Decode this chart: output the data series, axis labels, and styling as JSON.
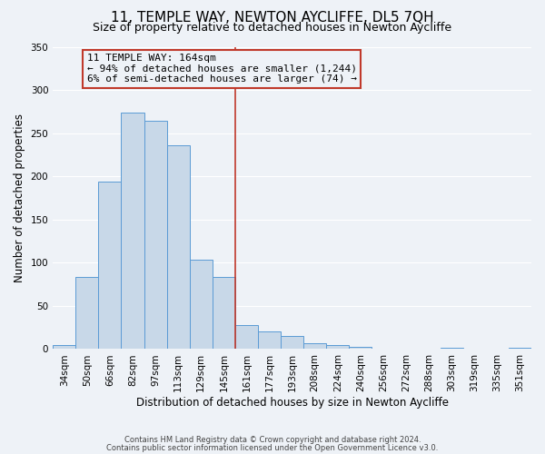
{
  "title": "11, TEMPLE WAY, NEWTON AYCLIFFE, DL5 7QH",
  "subtitle": "Size of property relative to detached houses in Newton Aycliffe",
  "xlabel": "Distribution of detached houses by size in Newton Aycliffe",
  "ylabel": "Number of detached properties",
  "bar_labels": [
    "34sqm",
    "50sqm",
    "66sqm",
    "82sqm",
    "97sqm",
    "113sqm",
    "129sqm",
    "145sqm",
    "161sqm",
    "177sqm",
    "193sqm",
    "208sqm",
    "224sqm",
    "240sqm",
    "256sqm",
    "272sqm",
    "288sqm",
    "303sqm",
    "319sqm",
    "335sqm",
    "351sqm"
  ],
  "bar_values": [
    5,
    84,
    194,
    274,
    264,
    236,
    104,
    83,
    28,
    20,
    15,
    7,
    5,
    3,
    1,
    0,
    0,
    2,
    0,
    1,
    2
  ],
  "bar_color": "#c8d8e8",
  "bar_edge_color": "#5b9bd5",
  "vline_index": 8,
  "vline_color": "#c0392b",
  "annotation_title": "11 TEMPLE WAY: 164sqm",
  "annotation_line1": "← 94% of detached houses are smaller (1,244)",
  "annotation_line2": "6% of semi-detached houses are larger (74) →",
  "annotation_box_edge": "#c0392b",
  "ylim": [
    0,
    350
  ],
  "footnote1": "Contains HM Land Registry data © Crown copyright and database right 2024.",
  "footnote2": "Contains public sector information licensed under the Open Government Licence v3.0.",
  "background_color": "#eef2f7",
  "grid_color": "#ffffff",
  "title_fontsize": 11,
  "subtitle_fontsize": 9,
  "axis_label_fontsize": 8.5,
  "tick_fontsize": 7.5,
  "annotation_fontsize": 8,
  "footnote_fontsize": 6
}
